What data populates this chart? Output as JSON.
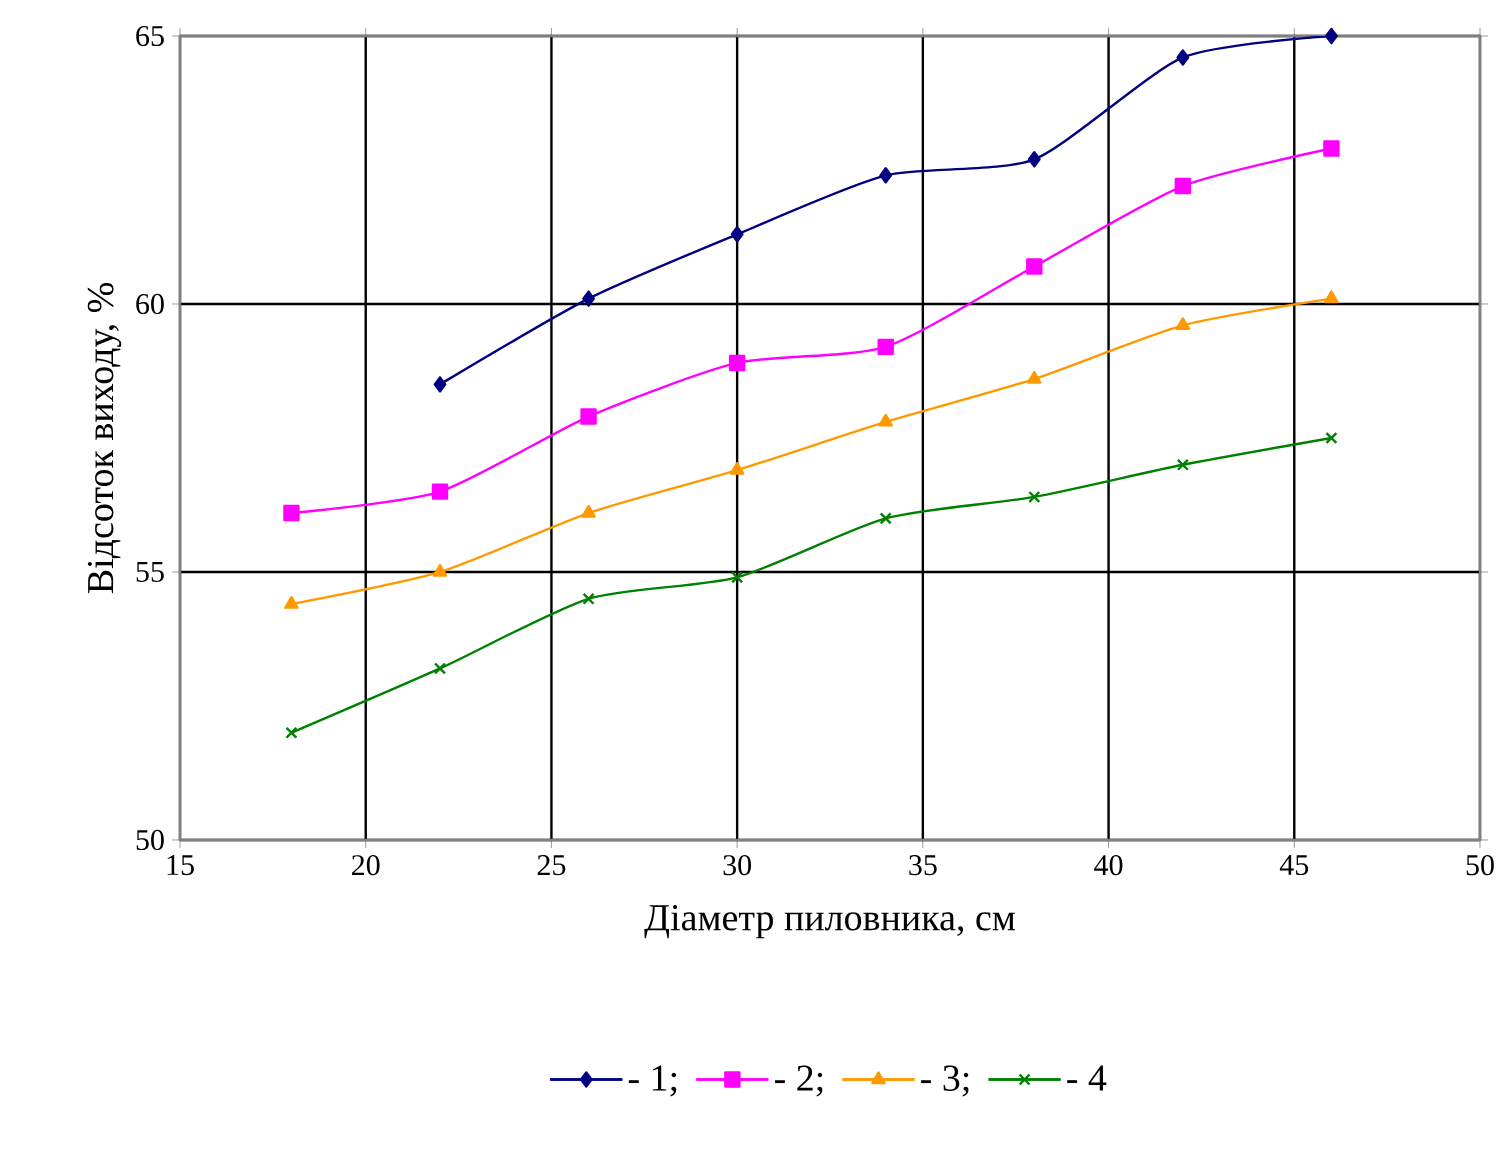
{
  "chart_data": {
    "type": "line",
    "xlabel": "Діаметр пиловника, см",
    "ylabel": "Відсоток виходу, %",
    "xlim": [
      15,
      50
    ],
    "xticks": [
      15,
      20,
      25,
      30,
      35,
      40,
      45,
      50
    ],
    "ylim": [
      50,
      65
    ],
    "yticks": [
      50,
      55,
      60,
      65
    ],
    "grid": true,
    "legend": "bottom",
    "line_style": "solid",
    "series": [
      {
        "name": "- 1;",
        "color": "#000080",
        "marker": "diamond",
        "x": [
          22,
          26,
          30,
          34,
          38,
          42,
          46
        ],
        "values": [
          58.5,
          60.1,
          61.3,
          62.4,
          62.7,
          64.6,
          65.0
        ]
      },
      {
        "name": "- 2;",
        "color": "#ff00ff",
        "marker": "square",
        "x": [
          18,
          22,
          26,
          30,
          34,
          38,
          42,
          46
        ],
        "values": [
          56.1,
          56.5,
          57.9,
          58.9,
          59.2,
          60.7,
          62.2,
          62.9
        ]
      },
      {
        "name": "- 3;",
        "color": "#ff9900",
        "marker": "triangle",
        "x": [
          18,
          22,
          26,
          30,
          34,
          38,
          42,
          46
        ],
        "values": [
          54.4,
          55.0,
          56.1,
          56.9,
          57.8,
          58.6,
          59.6,
          60.1
        ]
      },
      {
        "name": "- 4",
        "color": "#008000",
        "marker": "cross",
        "x": [
          18,
          22,
          26,
          30,
          34,
          38,
          42,
          46
        ],
        "values": [
          52.0,
          53.2,
          54.5,
          54.9,
          56.0,
          56.4,
          57.0,
          57.5
        ]
      }
    ]
  }
}
